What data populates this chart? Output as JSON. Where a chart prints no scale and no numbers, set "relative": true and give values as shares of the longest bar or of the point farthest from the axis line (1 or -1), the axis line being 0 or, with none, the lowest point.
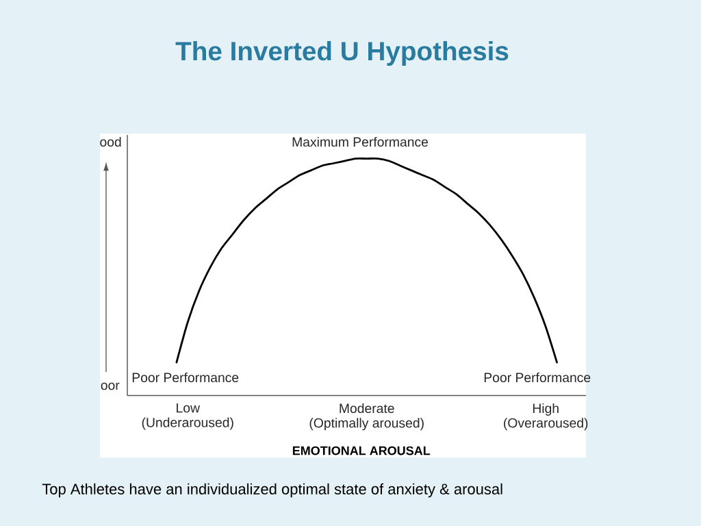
{
  "chart_data": {
    "type": "line",
    "title": "The Inverted U Hypothesis",
    "xlabel": "EMOTIONAL AROUSAL",
    "relative": true,
    "categories": [
      null,
      "Low\n(Underaroused)",
      null,
      null,
      null,
      null,
      null,
      null,
      null,
      null,
      null,
      null,
      null,
      null,
      null,
      null,
      null,
      "Moderate\n(Optimally aroused)",
      null,
      null,
      null,
      null,
      null,
      null,
      null,
      null,
      null,
      null,
      null,
      null,
      null,
      null,
      null,
      "High\n(Overaroused)",
      null
    ],
    "series": [
      {
        "color": "#000000",
        "values": [
          0.14,
          0.31,
          0.44,
          0.54,
          0.62,
          0.68,
          0.74,
          0.79,
          0.83,
          0.87,
          0.9,
          0.93,
          0.95,
          0.97,
          0.98,
          0.99,
          1.0,
          1.0,
          1.0,
          0.99,
          0.97,
          0.95,
          0.93,
          0.91,
          0.88,
          0.85,
          0.81,
          0.77,
          0.72,
          0.66,
          0.59,
          0.51,
          0.41,
          0.29,
          0.14
        ]
      }
    ],
    "annotations": [
      "Maximum Performance",
      "Poor Performance",
      "Poor Performance",
      "ood",
      "oor",
      "Top Athletes have an individualized optimal state of anxiety & arousal"
    ]
  }
}
